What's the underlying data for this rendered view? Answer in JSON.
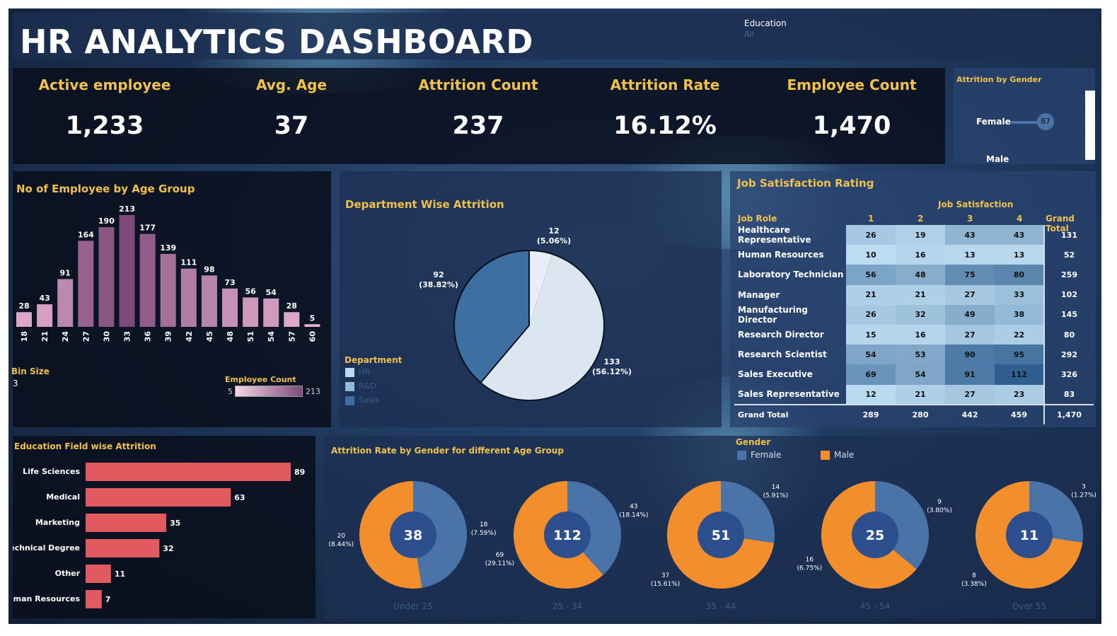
{
  "header": {
    "title": "HR ANALYTICS DASHBOARD",
    "filter_label": "Education",
    "filter_value": "All"
  },
  "kpis": [
    {
      "label": "Active employee",
      "value": "1,233"
    },
    {
      "label": "Avg. Age",
      "value": "37"
    },
    {
      "label": "Attrition Count",
      "value": "237"
    },
    {
      "label": "Attrition Rate",
      "value": "16.12%"
    },
    {
      "label": "Employee Count",
      "value": "1,470"
    }
  ],
  "gender_panel": {
    "title": "Attrition by Gender",
    "female_label": "Female",
    "female_value": "87",
    "male_label": "Male"
  },
  "chart_data": [
    {
      "type": "bar",
      "title": "No of Employee by Age Group",
      "categories": [
        "18",
        "21",
        "24",
        "27",
        "30",
        "33",
        "36",
        "39",
        "42",
        "45",
        "48",
        "51",
        "54",
        "57",
        "60"
      ],
      "values": [
        28,
        43,
        91,
        164,
        190,
        213,
        177,
        139,
        111,
        98,
        73,
        56,
        54,
        28,
        5
      ],
      "value_labels": [
        "28",
        "43",
        "91",
        "164",
        "190",
        "213",
        "177",
        "139",
        "111",
        "98",
        "73",
        "56",
        "54",
        "28",
        "5"
      ],
      "bin_size_label": "Bin Size",
      "bin_size_value": "3",
      "legend": {
        "title": "Employee Count",
        "min": "5",
        "max": "213"
      },
      "colors": {
        "low": "#e9b3d1",
        "high": "#7e4a7a"
      }
    },
    {
      "type": "pie",
      "title": "Department Wise Attrition",
      "legend_title": "Department",
      "slices": [
        {
          "name": "HR",
          "value": 12,
          "label": "12",
          "pct": "(5.06%)",
          "color": "#e8eef5"
        },
        {
          "name": "R&D",
          "value": 133,
          "label": "133",
          "pct": "(56.12%)",
          "color": "#dce6f1"
        },
        {
          "name": "Sales",
          "value": 92,
          "label": "92",
          "pct": "(38.82%)",
          "color": "#3e6fa3"
        }
      ],
      "legend_colors": [
        "#b9dcf2",
        "#8fbbe0",
        "#3e6fa3"
      ]
    },
    {
      "type": "table",
      "title": "Job Satisfaction Rating",
      "column_header": "Job Satisfaction",
      "row_header": "Job Role",
      "columns": [
        "1",
        "2",
        "3",
        "4"
      ],
      "grand_total_label": "Grand Total",
      "rows": [
        {
          "role": "Healthcare Representative",
          "values": [
            26,
            19,
            43,
            43
          ],
          "total": "131"
        },
        {
          "role": "Human Resources",
          "values": [
            10,
            16,
            13,
            13
          ],
          "total": "52"
        },
        {
          "role": "Laboratory Technician",
          "values": [
            56,
            48,
            75,
            80
          ],
          "total": "259"
        },
        {
          "role": "Manager",
          "values": [
            21,
            21,
            27,
            33
          ],
          "total": "102"
        },
        {
          "role": "Manufacturing Director",
          "values": [
            26,
            32,
            49,
            38
          ],
          "total": "145"
        },
        {
          "role": "Research Director",
          "values": [
            15,
            16,
            27,
            22
          ],
          "total": "80"
        },
        {
          "role": "Research Scientist",
          "values": [
            54,
            53,
            90,
            95
          ],
          "total": "292"
        },
        {
          "role": "Sales Executive",
          "values": [
            69,
            54,
            91,
            112
          ],
          "total": "326"
        },
        {
          "role": "Sales Representative",
          "values": [
            12,
            21,
            27,
            23
          ],
          "total": "83"
        }
      ],
      "totals": [
        "289",
        "280",
        "442",
        "459"
      ],
      "grand_total": "1,470"
    },
    {
      "type": "bar",
      "orientation": "horizontal",
      "title": "Education Field wise Attrition",
      "categories": [
        "Life Sciences",
        "Medical",
        "Marketing",
        "Technical Degree",
        "Other",
        "Human Resources"
      ],
      "values": [
        89,
        63,
        35,
        32,
        11,
        7
      ],
      "value_labels": [
        "89",
        "63",
        "35",
        "32",
        "11",
        "7"
      ],
      "color": "#e05a5f"
    },
    {
      "type": "pie",
      "subtype": "donut",
      "title": "Attrition Rate by Gender for different Age Group",
      "legend_title": "Gender",
      "legend": [
        {
          "name": "Female",
          "color": "#4a74a8"
        },
        {
          "name": "Male",
          "color": "#f28e2b"
        }
      ],
      "groups": [
        {
          "name": "Under 25",
          "total": "38",
          "female": 18,
          "female_label": "18",
          "female_pct": "(7.59%)",
          "male": 20,
          "male_label": "20",
          "male_pct": "(8.44%)"
        },
        {
          "name": "25 - 34",
          "total": "112",
          "female": 43,
          "female_label": "43",
          "female_pct": "(18.14%)",
          "male": 69,
          "male_label": "69",
          "male_pct": "(29.11%)"
        },
        {
          "name": "35 - 44",
          "total": "51",
          "female": 14,
          "female_label": "14",
          "female_pct": "(5.91%)",
          "male": 37,
          "male_label": "37",
          "male_pct": "(15.61%)"
        },
        {
          "name": "45 - 54",
          "total": "25",
          "female": 9,
          "female_label": "9",
          "female_pct": "(3.80%)",
          "male": 16,
          "male_label": "16",
          "male_pct": "(6.75%)"
        },
        {
          "name": "Over 55",
          "total": "11",
          "female": 3,
          "female_label": "3",
          "female_pct": "(1.27%)",
          "male": 8,
          "male_label": "8",
          "male_pct": "(3.38%)"
        }
      ]
    }
  ]
}
